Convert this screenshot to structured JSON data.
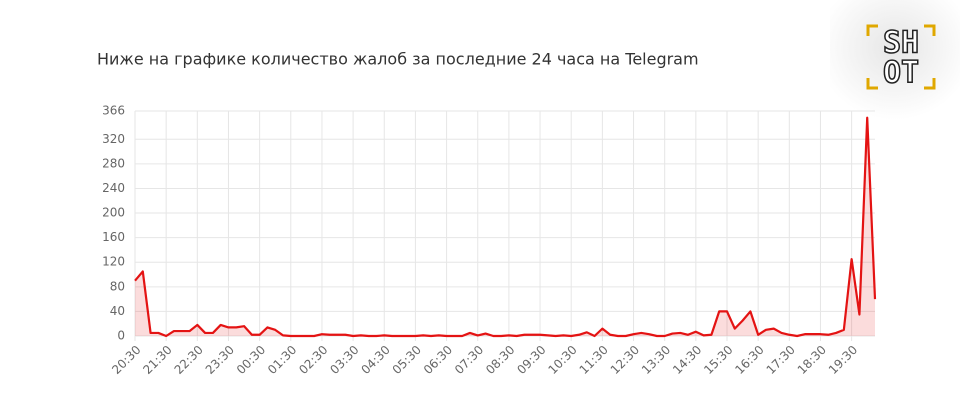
{
  "logo_lines": [
    "SH",
    "OT"
  ],
  "chart_data": {
    "type": "line",
    "title": "Ниже на графике количество жалоб за последние 24 часа на Telegram",
    "categories": [
      "20:30",
      null,
      null,
      null,
      "21:30",
      null,
      null,
      null,
      "22:30",
      null,
      null,
      null,
      "23:30",
      null,
      null,
      null,
      "00:30",
      null,
      null,
      null,
      "01:30",
      null,
      null,
      null,
      "02:30",
      null,
      null,
      null,
      "03:30",
      null,
      null,
      null,
      "04:30",
      null,
      null,
      null,
      "05:30",
      null,
      null,
      null,
      "06:30",
      null,
      null,
      null,
      "07:30",
      null,
      null,
      null,
      "08:30",
      null,
      null,
      null,
      "09:30",
      null,
      null,
      null,
      "10:30",
      null,
      null,
      null,
      "11:30",
      null,
      null,
      null,
      "12:30",
      null,
      null,
      null,
      "13:30",
      null,
      null,
      null,
      "14:30",
      null,
      null,
      null,
      "15:30",
      null,
      null,
      null,
      "16:30",
      null,
      null,
      null,
      "17:30",
      null,
      null,
      null,
      "18:30",
      null,
      null,
      null,
      "19:30",
      null,
      null,
      null
    ],
    "values": [
      90,
      105,
      5,
      5,
      0,
      8,
      8,
      8,
      18,
      5,
      5,
      18,
      14,
      14,
      16,
      2,
      2,
      14,
      10,
      1,
      0,
      0,
      0,
      0,
      3,
      2,
      2,
      2,
      0,
      1,
      0,
      0,
      1,
      0,
      0,
      0,
      0,
      1,
      0,
      1,
      0,
      0,
      0,
      5,
      1,
      4,
      0,
      0,
      1,
      0,
      2,
      2,
      2,
      1,
      0,
      1,
      0,
      2,
      6,
      0,
      12,
      2,
      0,
      0,
      3,
      5,
      3,
      0,
      0,
      4,
      5,
      2,
      7,
      1,
      2,
      40,
      40,
      12,
      25,
      40,
      2,
      10,
      12,
      5,
      2,
      0,
      3,
      3,
      3,
      2,
      5,
      10,
      125,
      35,
      355,
      60
    ],
    "color": "#e41313",
    "ylim": [
      0,
      366
    ],
    "yticks": [
      0,
      40,
      80,
      120,
      160,
      200,
      240,
      280,
      320,
      366
    ],
    "grid": true
  }
}
